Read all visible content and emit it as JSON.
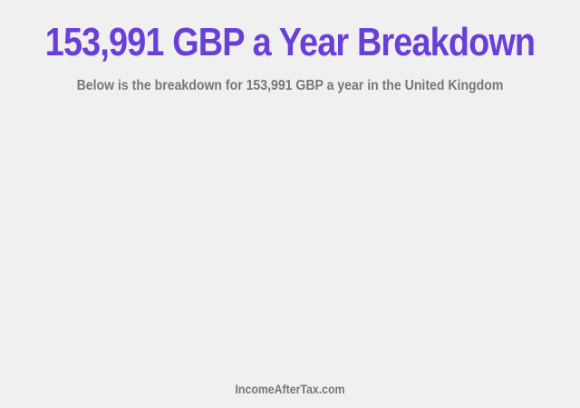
{
  "header": {
    "title": "153,991 GBP a Year Breakdown",
    "subtitle": "Below is the breakdown for 153,991 GBP a year in the United Kingdom"
  },
  "footer": {
    "site": "IncomeAfterTax.com"
  },
  "colors": {
    "title": "#6a3fd8",
    "text": "#777777",
    "background": "#f0f0f0"
  }
}
